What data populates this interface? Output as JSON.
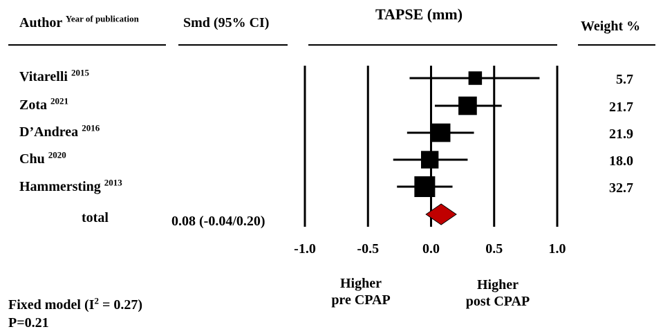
{
  "headers": {
    "author": "Author",
    "author_sup": "Year of publication",
    "smd": "Smd (95% CI)",
    "plot_title": "TAPSE (mm)",
    "weight": "Weight %"
  },
  "total": {
    "label": "total",
    "estimate_text": "0.08 (-0.04/0.20)"
  },
  "directions": {
    "left": [
      "Higher",
      "pre CPAP"
    ],
    "right": [
      "Higher",
      "post CPAP"
    ]
  },
  "footer": {
    "model_prefix": "Fixed model (I",
    "model_sup": "2",
    "model_suffix": " = 0.27)",
    "p_value": "P=0.21"
  },
  "colors": {
    "marker": "#000000",
    "diamond": "#c00000"
  },
  "chart_data": {
    "type": "forest",
    "title": "TAPSE (mm)",
    "xlim": [
      -1.0,
      1.0
    ],
    "xticks": [
      -1.0,
      -0.5,
      0.0,
      0.5,
      1.0
    ],
    "xtick_labels": [
      "-1.0",
      "-0.5",
      "0.0",
      "0.5",
      "1.0"
    ],
    "reference_lines": [
      -1.0,
      -0.5,
      0.0,
      0.5,
      1.0
    ],
    "studies": [
      {
        "author": "Vitarelli",
        "year": "2015",
        "smd": 0.35,
        "ci_low": -0.17,
        "ci_high": 0.86,
        "weight": "5.7"
      },
      {
        "author": "Zota",
        "year": "2021",
        "smd": 0.29,
        "ci_low": 0.03,
        "ci_high": 0.56,
        "weight": "21.7"
      },
      {
        "author": "D’Andrea",
        "year": "2016",
        "smd": 0.08,
        "ci_low": -0.19,
        "ci_high": 0.34,
        "weight": "21.9"
      },
      {
        "author": "Chu",
        "year": "2020",
        "smd": -0.01,
        "ci_low": -0.3,
        "ci_high": 0.29,
        "weight": "18.0"
      },
      {
        "author": "Hammersting",
        "year": "2013",
        "smd": -0.05,
        "ci_low": -0.27,
        "ci_high": 0.17,
        "weight": "32.7"
      }
    ],
    "pooled": {
      "smd": 0.08,
      "ci_low": -0.04,
      "ci_high": 0.2
    }
  }
}
